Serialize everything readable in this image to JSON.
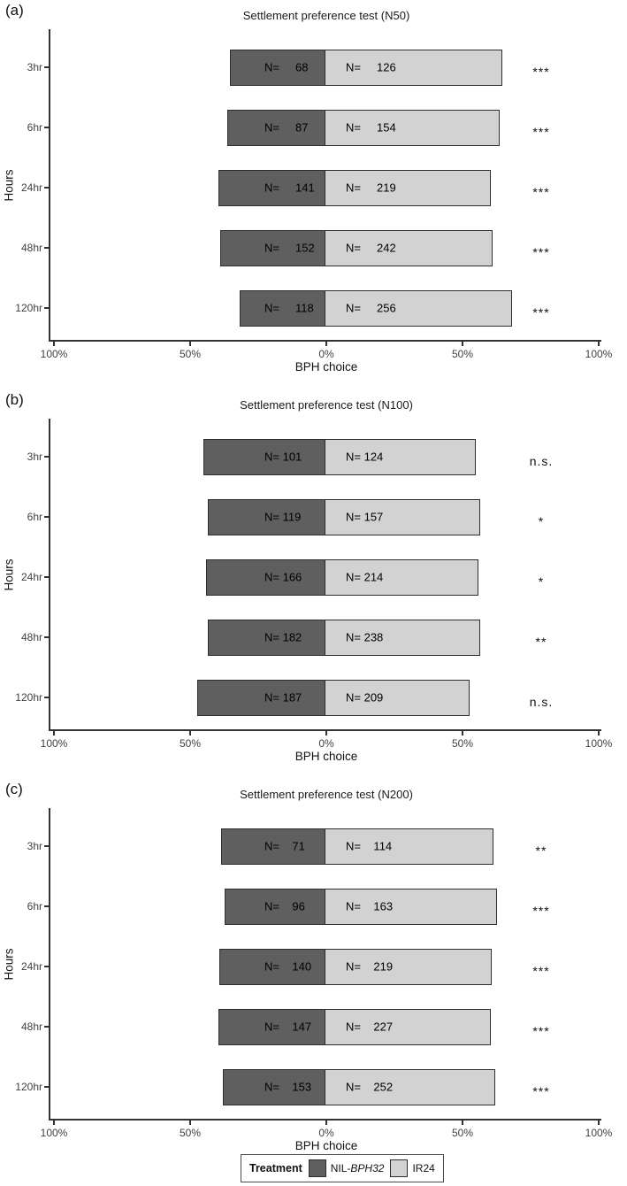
{
  "colors": {
    "dark_fill": "#5f5f5f",
    "light_fill": "#d2d2d2",
    "bar_border": "#2e2e2e",
    "axis": "#333333"
  },
  "legend": {
    "title": "Treatment",
    "items": [
      {
        "prefix": "NIL-",
        "gene": "BPH32",
        "swatch": "dark"
      },
      {
        "label": "IR24",
        "swatch": "light"
      }
    ]
  },
  "panels": [
    {
      "tag": "(a)",
      "title": "Settlement preference test (N50)",
      "ylabel": "Hours",
      "xlabel": "BPH choice",
      "x_ticks": [
        "100%",
        "50%",
        "0%",
        "50%",
        "100%"
      ],
      "rows": [
        {
          "hour": "3hr",
          "dark_n": 68,
          "light_n": 126,
          "dark_label": "N=     68",
          "light_label": "N=     126",
          "sig": "***"
        },
        {
          "hour": "6hr",
          "dark_n": 87,
          "light_n": 154,
          "dark_label": "N=     87",
          "light_label": "N=     154",
          "sig": "***"
        },
        {
          "hour": "24hr",
          "dark_n": 141,
          "light_n": 219,
          "dark_label": "N=     141",
          "light_label": "N=     219",
          "sig": "***"
        },
        {
          "hour": "48hr",
          "dark_n": 152,
          "light_n": 242,
          "dark_label": "N=     152",
          "light_label": "N=     242",
          "sig": "***"
        },
        {
          "hour": "120hr",
          "dark_n": 118,
          "light_n": 256,
          "dark_label": "N=     118",
          "light_label": "N=     256",
          "sig": "***"
        }
      ]
    },
    {
      "tag": "(b)",
      "title": "Settlement preference test (N100)",
      "ylabel": "Hours",
      "xlabel": "BPH choice",
      "x_ticks": [
        "100%",
        "50%",
        "0%",
        "50%",
        "100%"
      ],
      "rows": [
        {
          "hour": "3hr",
          "dark_n": 101,
          "light_n": 124,
          "dark_label": "N= 101",
          "light_label": "N= 124",
          "sig": "n.s."
        },
        {
          "hour": "6hr",
          "dark_n": 119,
          "light_n": 157,
          "dark_label": "N= 119",
          "light_label": "N= 157",
          "sig": "*"
        },
        {
          "hour": "24hr",
          "dark_n": 166,
          "light_n": 214,
          "dark_label": "N= 166",
          "light_label": "N= 214",
          "sig": "*"
        },
        {
          "hour": "48hr",
          "dark_n": 182,
          "light_n": 238,
          "dark_label": "N= 182",
          "light_label": "N= 238",
          "sig": "**"
        },
        {
          "hour": "120hr",
          "dark_n": 187,
          "light_n": 209,
          "dark_label": "N= 187",
          "light_label": "N= 209",
          "sig": "n.s."
        }
      ]
    },
    {
      "tag": "(c)",
      "title": "Settlement preference test (N200)",
      "ylabel": "Hours",
      "xlabel": "BPH choice",
      "x_ticks": [
        "100%",
        "50%",
        "0%",
        "50%",
        "100%"
      ],
      "rows": [
        {
          "hour": "3hr",
          "dark_n": 71,
          "light_n": 114,
          "dark_label": "N=    71",
          "light_label": "N=    114",
          "sig": "**"
        },
        {
          "hour": "6hr",
          "dark_n": 96,
          "light_n": 163,
          "dark_label": "N=    96",
          "light_label": "N=    163",
          "sig": "***"
        },
        {
          "hour": "24hr",
          "dark_n": 140,
          "light_n": 219,
          "dark_label": "N=    140",
          "light_label": "N=    219",
          "sig": "***"
        },
        {
          "hour": "48hr",
          "dark_n": 147,
          "light_n": 227,
          "dark_label": "N=    147",
          "light_label": "N=    227",
          "sig": "***"
        },
        {
          "hour": "120hr",
          "dark_n": 153,
          "light_n": 252,
          "dark_label": "N=    153",
          "light_label": "N=    252",
          "sig": "***"
        }
      ]
    }
  ],
  "chart_data": [
    {
      "type": "bar",
      "subtype": "diverging-stacked-horizontal",
      "title": "Settlement preference test (N50)",
      "categories": [
        "3hr",
        "6hr",
        "24hr",
        "48hr",
        "120hr"
      ],
      "series": [
        {
          "name": "NIL-BPH32",
          "values": [
            68,
            87,
            141,
            152,
            118
          ]
        },
        {
          "name": "IR24",
          "values": [
            126,
            154,
            219,
            242,
            256
          ]
        }
      ],
      "significance": [
        "***",
        "***",
        "***",
        "***",
        "***"
      ],
      "xlabel": "BPH choice",
      "ylabel": "Hours",
      "x_tick_labels": [
        "100%",
        "50%",
        "0%",
        "50%",
        "100%"
      ],
      "xlim": [
        -100,
        100
      ],
      "note": "Bar lengths are percentages of row total; NIL-BPH32 plotted left of 0%, IR24 right",
      "legend_position": "bottom",
      "grid": false
    },
    {
      "type": "bar",
      "subtype": "diverging-stacked-horizontal",
      "title": "Settlement preference test (N100)",
      "categories": [
        "3hr",
        "6hr",
        "24hr",
        "48hr",
        "120hr"
      ],
      "series": [
        {
          "name": "NIL-BPH32",
          "values": [
            101,
            119,
            166,
            182,
            187
          ]
        },
        {
          "name": "IR24",
          "values": [
            124,
            157,
            214,
            238,
            209
          ]
        }
      ],
      "significance": [
        "n.s.",
        "*",
        "*",
        "**",
        "n.s."
      ],
      "xlabel": "BPH choice",
      "ylabel": "Hours",
      "x_tick_labels": [
        "100%",
        "50%",
        "0%",
        "50%",
        "100%"
      ],
      "xlim": [
        -100,
        100
      ],
      "note": "Bar lengths are percentages of row total; NIL-BPH32 plotted left of 0%, IR24 right",
      "legend_position": "bottom",
      "grid": false
    },
    {
      "type": "bar",
      "subtype": "diverging-stacked-horizontal",
      "title": "Settlement preference test (N200)",
      "categories": [
        "3hr",
        "6hr",
        "24hr",
        "48hr",
        "120hr"
      ],
      "series": [
        {
          "name": "NIL-BPH32",
          "values": [
            71,
            96,
            140,
            147,
            153
          ]
        },
        {
          "name": "IR24",
          "values": [
            114,
            163,
            219,
            227,
            252
          ]
        }
      ],
      "significance": [
        "**",
        "***",
        "***",
        "***",
        "***"
      ],
      "xlabel": "BPH choice",
      "ylabel": "Hours",
      "x_tick_labels": [
        "100%",
        "50%",
        "0%",
        "50%",
        "100%"
      ],
      "xlim": [
        -100,
        100
      ],
      "note": "Bar lengths are percentages of row total; NIL-BPH32 plotted left of 0%, IR24 right",
      "legend_position": "bottom",
      "grid": false
    }
  ]
}
